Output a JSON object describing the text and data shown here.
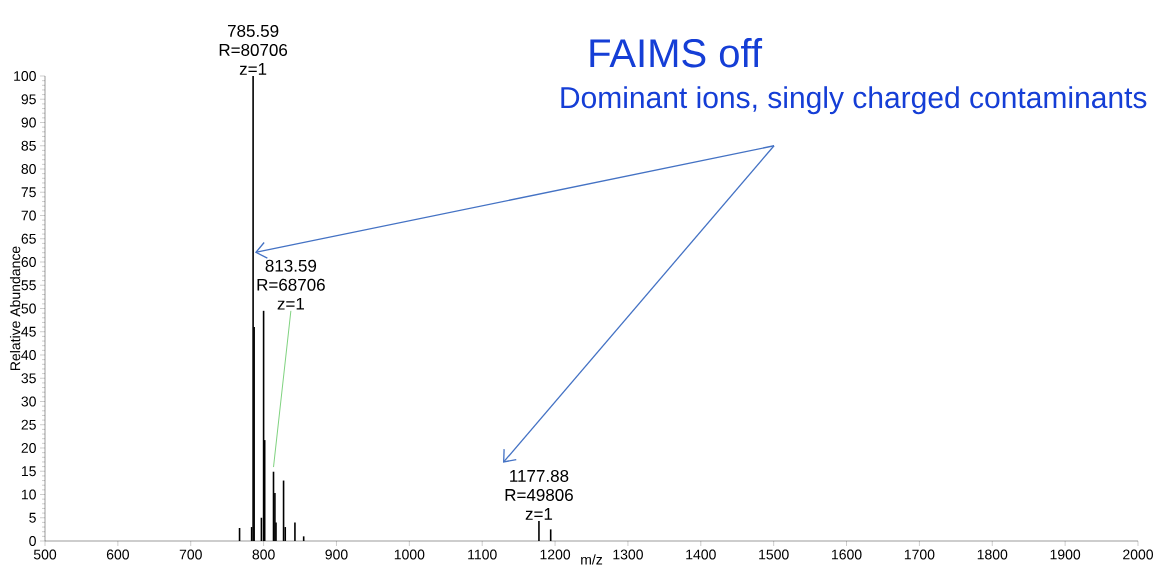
{
  "chart_data": {
    "type": "bar",
    "title": "FAIMS off",
    "subtitle": "Dominant ions, singly charged contaminants",
    "xlabel": "m/z",
    "ylabel": "Relative Abundance",
    "color": "#000000",
    "x": [
      767,
      783.6,
      785.59,
      787,
      797,
      800,
      801.5,
      813.59,
      815.5,
      817,
      827.4,
      829.7,
      843,
      855,
      1177.88,
      1194
    ],
    "values": [
      2.8,
      3,
      100,
      46,
      5,
      49.5,
      21.7,
      14.9,
      10.3,
      4,
      13,
      3,
      4,
      1,
      4.3,
      2.5
    ],
    "xlim": [
      500,
      2000
    ],
    "ylim": [
      0,
      100
    ],
    "xticks": [
      500,
      600,
      700,
      800,
      900,
      1000,
      1100,
      1200,
      1300,
      1400,
      1500,
      1600,
      1700,
      1800,
      1900,
      2000
    ],
    "yticks": [
      0,
      5,
      10,
      15,
      20,
      25,
      30,
      35,
      40,
      45,
      50,
      55,
      60,
      65,
      70,
      75,
      80,
      85,
      90,
      95,
      100
    ],
    "grid": false,
    "annotations": [
      {
        "text": "785.59",
        "x": 785.59,
        "y": 100
      },
      {
        "text": "R=80706",
        "x": 785.59,
        "y": 100
      },
      {
        "text": "z=1",
        "x": 785.59,
        "y": 100
      },
      "813.59",
      "R=68706",
      {
        "text": "z=1",
        "x": 813.59,
        "y": 14.9
      },
      {
        "text": "1177.88",
        "x": 1177.88,
        "y": 4.3
      },
      {
        "text": "R=49806",
        "x": 1177.88,
        "y": 4.3
      },
      {
        "text": "z=1",
        "x": 1177.88,
        "y": 4.3
      }
    ]
  }
}
